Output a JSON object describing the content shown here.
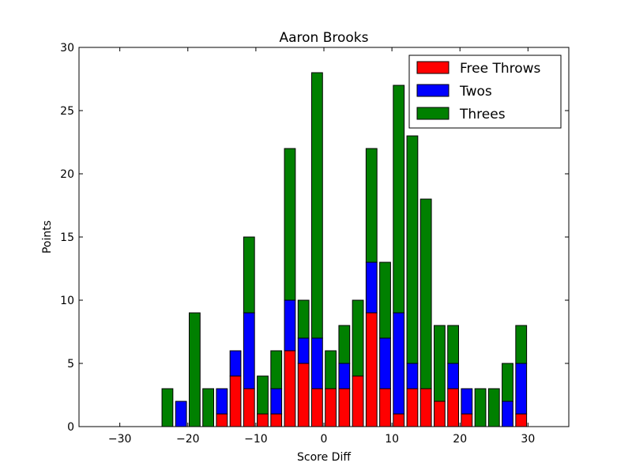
{
  "chart_data": {
    "type": "bar",
    "stacked": true,
    "title": "Aaron Brooks",
    "xlabel": "Score Diff",
    "ylabel": "Points",
    "xlim": [
      -36,
      36
    ],
    "ylim": [
      0,
      30
    ],
    "xticks": [
      -30,
      -20,
      -10,
      0,
      10,
      20,
      30
    ],
    "yticks": [
      0,
      5,
      10,
      15,
      20,
      25,
      30
    ],
    "xtick_labels": [
      "−30",
      "−20",
      "−10",
      "0",
      "10",
      "20",
      "30"
    ],
    "ytick_labels": [
      "0",
      "5",
      "10",
      "15",
      "20",
      "25",
      "30"
    ],
    "legend_position": "top-right",
    "grid": false,
    "x": [
      -35,
      -33,
      -31,
      -29,
      -27,
      -25,
      -23,
      -21,
      -19,
      -17,
      -15,
      -13,
      -11,
      -9,
      -7,
      -5,
      -3,
      -1,
      1,
      3,
      5,
      7,
      9,
      11,
      13,
      15,
      17,
      19,
      21,
      23,
      25,
      27,
      29,
      31,
      33,
      35
    ],
    "series": [
      {
        "name": "Free Throws",
        "color": "#ff0000",
        "values": [
          0,
          0,
          0,
          0,
          0,
          0,
          0,
          0,
          0,
          0,
          1,
          4,
          3,
          1,
          1,
          6,
          5,
          3,
          3,
          3,
          4,
          9,
          3,
          1,
          3,
          3,
          2,
          3,
          1,
          0,
          0,
          0,
          1,
          0,
          0,
          0
        ]
      },
      {
        "name": "Twos",
        "color": "#0000ff",
        "values": [
          0,
          0,
          0,
          0,
          0,
          0,
          0,
          2,
          0,
          0,
          2,
          2,
          6,
          0,
          2,
          4,
          2,
          4,
          0,
          2,
          0,
          4,
          4,
          8,
          2,
          0,
          0,
          2,
          2,
          0,
          0,
          2,
          4,
          0,
          0,
          0
        ]
      },
      {
        "name": "Threes",
        "color": "#008000",
        "values": [
          0,
          0,
          0,
          0,
          0,
          0,
          3,
          0,
          9,
          3,
          0,
          0,
          6,
          3,
          3,
          12,
          3,
          21,
          3,
          3,
          6,
          9,
          6,
          18,
          18,
          15,
          6,
          3,
          0,
          3,
          3,
          3,
          3,
          0,
          0,
          0
        ]
      }
    ]
  }
}
